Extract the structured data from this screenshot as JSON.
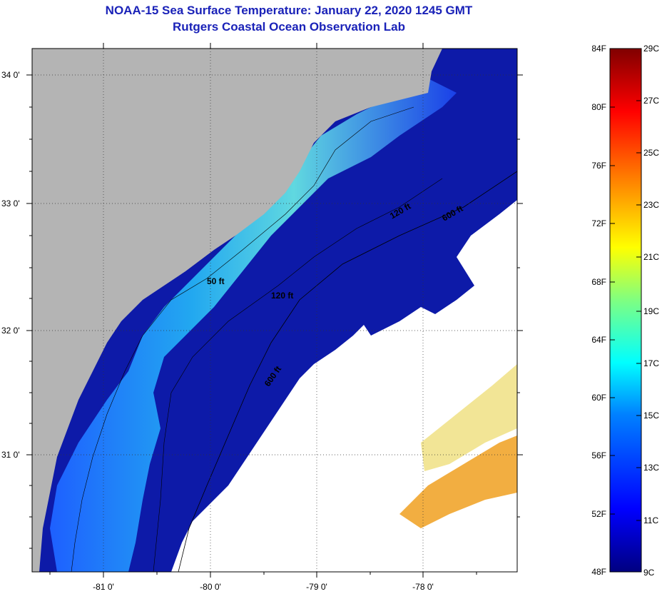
{
  "title": {
    "line1": "NOAA-15 Sea Surface Temperature:  January 22, 2020 1245 GMT",
    "line2": "Rutgers Coastal Ocean Observation Lab"
  },
  "map": {
    "lat_labels": [
      "34 0'",
      "33 0'",
      "32 0'",
      "31 0'"
    ],
    "lon_labels": [
      "-81 0'",
      "-80 0'",
      "-79 0'",
      "-78 0'"
    ],
    "isobath_labels": [
      "50 ft",
      "120 ft",
      "600 ft",
      "600 ft",
      "120 ft"
    ],
    "colors": {
      "land": "#b4b4b4",
      "cloud": "#ffffff",
      "deep_water": "#0d1aa8"
    }
  },
  "colorbar": {
    "fahrenheit": [
      "84F",
      "80F",
      "76F",
      "72F",
      "68F",
      "64F",
      "60F",
      "56F",
      "52F",
      "48F"
    ],
    "celsius": [
      "29C",
      "27C",
      "25C",
      "23C",
      "21C",
      "19C",
      "17C",
      "15C",
      "13C",
      "11C",
      "9C"
    ],
    "min_label": "48F",
    "max_label": "84F"
  }
}
